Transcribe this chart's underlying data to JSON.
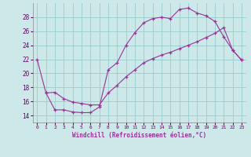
{
  "xlabel": "Windchill (Refroidissement éolien,°C)",
  "bg_color": "#cce8e8",
  "grid_color": "#99cccc",
  "line_color": "#993399",
  "xlim": [
    -0.5,
    23.5
  ],
  "ylim": [
    13.0,
    30.0
  ],
  "yticks": [
    14,
    16,
    18,
    20,
    22,
    24,
    26,
    28
  ],
  "xticks": [
    0,
    1,
    2,
    3,
    4,
    5,
    6,
    7,
    8,
    9,
    10,
    11,
    12,
    13,
    14,
    15,
    16,
    17,
    18,
    19,
    20,
    21,
    22,
    23
  ],
  "curve1_x": [
    0,
    1,
    2,
    3,
    4,
    5,
    6,
    7,
    8,
    9,
    10,
    11,
    12,
    13,
    14,
    15,
    16,
    17,
    18,
    19,
    20,
    21,
    22,
    23
  ],
  "curve1_y": [
    22.0,
    17.2,
    14.8,
    14.8,
    14.5,
    14.4,
    14.4,
    15.2,
    20.5,
    21.5,
    24.0,
    25.8,
    27.2,
    27.8,
    28.0,
    27.8,
    29.1,
    29.3,
    28.6,
    28.2,
    27.4,
    25.2,
    23.3,
    21.9
  ],
  "curve2_x": [
    1,
    2,
    3,
    4,
    5,
    6,
    7,
    8,
    9,
    10,
    11,
    12,
    13,
    14,
    15,
    16,
    17,
    18,
    19,
    20,
    21,
    22,
    23
  ],
  "curve2_y": [
    17.2,
    17.3,
    16.4,
    15.9,
    15.7,
    15.5,
    15.5,
    17.2,
    18.3,
    19.5,
    20.5,
    21.5,
    22.1,
    22.6,
    23.0,
    23.5,
    24.0,
    24.5,
    25.1,
    25.7,
    26.5,
    23.3,
    21.9
  ]
}
